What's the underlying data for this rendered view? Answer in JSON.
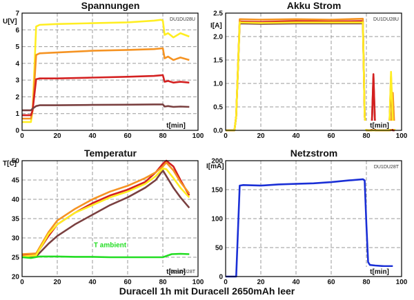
{
  "caption": "Duracell 1h mit Duracell 2650mAh leer",
  "colors": {
    "yellow": "#ffee22",
    "orange": "#f59322",
    "red": "#d42020",
    "brown": "#7a4040",
    "green": "#22dd22",
    "blue": "#1a2fd6",
    "grid": "#9a9a9a",
    "frame": "#000000"
  },
  "chart_data": [
    {
      "type": "line",
      "title": "Spannungen",
      "ylabel": "U[V]",
      "xlabel": "t[min]",
      "tag": "DU1DU28U",
      "xlim": [
        0,
        100
      ],
      "ylim": [
        0,
        7
      ],
      "xticks": [
        "0",
        "20",
        "40",
        "60",
        "80",
        "100"
      ],
      "yticks": [
        "0",
        "1",
        "2",
        "3",
        "4",
        "5",
        "6",
        "7"
      ],
      "grid": true,
      "series": [
        {
          "color": "yellow",
          "x": [
            0,
            5,
            6,
            8,
            10,
            20,
            40,
            60,
            75,
            79,
            80,
            81,
            83,
            86,
            90,
            95
          ],
          "y": [
            0.5,
            0.5,
            1.2,
            6.2,
            6.3,
            6.35,
            6.4,
            6.45,
            6.55,
            6.6,
            6.55,
            5.7,
            5.8,
            5.55,
            5.8,
            5.6
          ]
        },
        {
          "color": "orange",
          "x": [
            0,
            5,
            6,
            8,
            10,
            20,
            40,
            60,
            75,
            80,
            81,
            83,
            86,
            90,
            95
          ],
          "y": [
            0.7,
            0.7,
            1.2,
            4.5,
            4.6,
            4.65,
            4.75,
            4.8,
            4.85,
            4.9,
            4.3,
            4.4,
            4.2,
            4.35,
            4.2
          ]
        },
        {
          "color": "red",
          "x": [
            0,
            5,
            6,
            8,
            10,
            20,
            40,
            60,
            75,
            80,
            81,
            83,
            86,
            90,
            95
          ],
          "y": [
            0.9,
            0.9,
            1.2,
            3.05,
            3.1,
            3.1,
            3.15,
            3.2,
            3.25,
            3.3,
            2.9,
            2.95,
            2.85,
            2.9,
            2.85
          ]
        },
        {
          "color": "brown",
          "x": [
            0,
            5,
            6,
            8,
            10,
            20,
            40,
            60,
            75,
            80,
            81,
            83,
            86,
            90,
            95
          ],
          "y": [
            1.2,
            1.2,
            1.3,
            1.45,
            1.5,
            1.5,
            1.52,
            1.53,
            1.55,
            1.55,
            1.42,
            1.45,
            1.4,
            1.42,
            1.4
          ]
        }
      ]
    },
    {
      "type": "line",
      "title": "Akku Strom",
      "ylabel": "I[A]",
      "xlabel": "t[min]",
      "tag": "DU1DU28U",
      "xlim": [
        0,
        100
      ],
      "ylim": [
        0,
        2.5
      ],
      "xticks": [
        "0",
        "20",
        "40",
        "60",
        "80",
        "100"
      ],
      "yticks": [
        "0.0",
        "0.5",
        "1.0",
        "1.5",
        "2.0",
        "2.5"
      ],
      "grid": true,
      "series": [
        {
          "color": "brown",
          "x": [
            0,
            5,
            6,
            8,
            20,
            40,
            60,
            78,
            79,
            80,
            83,
            84,
            85,
            86,
            93,
            94,
            95,
            96
          ],
          "y": [
            0,
            0,
            0.3,
            2.28,
            2.27,
            2.28,
            2.28,
            2.28,
            0.3,
            0,
            0,
            1.15,
            0,
            0,
            0,
            1.05,
            0,
            0
          ]
        },
        {
          "color": "red",
          "x": [
            0,
            5,
            6,
            8,
            20,
            40,
            60,
            78,
            79,
            80,
            83,
            84,
            85,
            86,
            93,
            94,
            95,
            96
          ],
          "y": [
            0,
            0,
            0.3,
            2.32,
            2.31,
            2.33,
            2.32,
            2.33,
            0.3,
            0,
            0,
            1.2,
            0,
            0,
            0,
            1.15,
            0,
            0
          ]
        },
        {
          "color": "orange",
          "x": [
            0,
            5,
            6,
            8,
            20,
            40,
            60,
            78,
            79,
            80,
            94,
            95,
            96
          ],
          "y": [
            0,
            0,
            0.3,
            2.37,
            2.36,
            2.37,
            2.36,
            2.38,
            0.3,
            0,
            0,
            0.8,
            0
          ]
        },
        {
          "color": "yellow",
          "x": [
            0,
            5,
            6,
            8,
            20,
            40,
            60,
            78,
            79,
            80,
            82,
            93,
            94,
            95,
            96
          ],
          "y": [
            0,
            0,
            0.3,
            2.3,
            2.29,
            2.3,
            2.3,
            2.3,
            0.3,
            0,
            0,
            0,
            1.25,
            0.2,
            0
          ]
        }
      ]
    },
    {
      "type": "line",
      "title": "Temperatur",
      "ylabel": "T[C]",
      "xlabel": "t[min]",
      "tag": "DU1DU28T",
      "annotation": "T ambient",
      "xlim": [
        0,
        100
      ],
      "ylim": [
        20,
        50
      ],
      "xticks": [
        "0",
        "20",
        "40",
        "60",
        "80",
        "100"
      ],
      "yticks": [
        "20",
        "25",
        "30",
        "35",
        "40",
        "45",
        "50"
      ],
      "grid": true,
      "series": [
        {
          "color": "brown",
          "x": [
            0,
            8,
            15,
            20,
            30,
            40,
            50,
            60,
            70,
            76,
            80,
            82,
            86,
            90,
            95
          ],
          "y": [
            25,
            25.2,
            28.5,
            30.5,
            33.5,
            36,
            38.5,
            40.5,
            43,
            45,
            47.5,
            46,
            43,
            40.5,
            37.8
          ]
        },
        {
          "color": "red",
          "x": [
            0,
            8,
            15,
            20,
            30,
            40,
            50,
            60,
            70,
            76,
            80,
            82,
            86,
            90,
            95
          ],
          "y": [
            25.5,
            25.7,
            30.5,
            33.5,
            36.5,
            39,
            41,
            42.5,
            44.5,
            47,
            49.2,
            50,
            48.5,
            45,
            41
          ]
        },
        {
          "color": "orange",
          "x": [
            0,
            8,
            15,
            20,
            30,
            40,
            50,
            60,
            70,
            76,
            80,
            82,
            86,
            90,
            95
          ],
          "y": [
            25.8,
            26,
            31.5,
            34.5,
            37.5,
            40,
            42,
            43.5,
            45.5,
            47,
            48.5,
            49.5,
            47.5,
            44.5,
            41.5
          ]
        },
        {
          "color": "yellow",
          "x": [
            0,
            8,
            15,
            20,
            30,
            40,
            50,
            60,
            70,
            76,
            80,
            82,
            86,
            90,
            95
          ],
          "y": [
            25.2,
            25.5,
            31,
            33.5,
            36.5,
            38.5,
            40.5,
            42,
            44,
            46,
            48,
            47.8,
            45.5,
            43,
            40.5
          ]
        },
        {
          "color": "green",
          "x": [
            0,
            5,
            10,
            20,
            30,
            40,
            50,
            60,
            70,
            80,
            85,
            90,
            95
          ],
          "y": [
            25,
            24.8,
            25.2,
            25.2,
            25.1,
            25.1,
            25.0,
            25.0,
            25.0,
            25.0,
            25.8,
            25.9,
            25.8
          ]
        }
      ]
    },
    {
      "type": "line",
      "title": "Netzstrom",
      "ylabel": "I[mA]",
      "xlabel": "t[min]",
      "tag": "DU1DU28T",
      "xlim": [
        0,
        100
      ],
      "ylim": [
        0,
        200
      ],
      "xticks": [
        "0",
        "20",
        "40",
        "60",
        "80",
        "100"
      ],
      "yticks": [
        "0",
        "50",
        "100",
        "150",
        "200"
      ],
      "grid": true,
      "series": [
        {
          "color": "blue",
          "x": [
            0,
            5,
            6,
            7,
            8,
            10,
            20,
            30,
            40,
            50,
            60,
            70,
            78,
            79,
            80,
            81,
            82,
            85,
            90,
            95
          ],
          "y": [
            0,
            0,
            0,
            80,
            157,
            158,
            157,
            159,
            160,
            161,
            163,
            166,
            168,
            166,
            90,
            25,
            20,
            19,
            18,
            18
          ]
        }
      ]
    }
  ]
}
